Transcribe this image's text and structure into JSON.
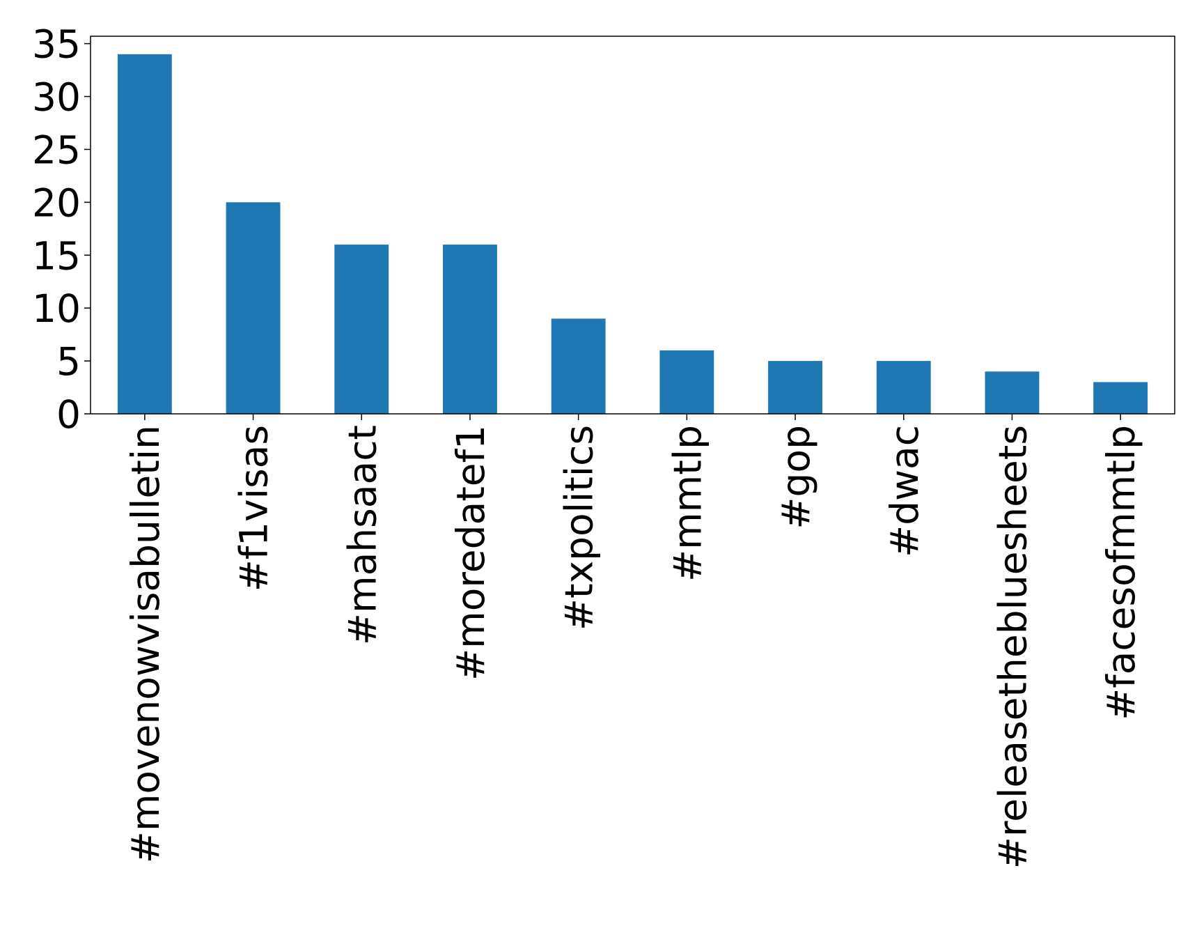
{
  "chart_data": {
    "type": "bar",
    "categories": [
      "#movenowvisabulletin",
      "#f1visas",
      "#mahsaact",
      "#moredatef1",
      "#txpolitics",
      "#mmtlp",
      "#gop",
      "#dwac",
      "#releasethebluesheets",
      "#facesofmmtlp"
    ],
    "values": [
      34,
      20,
      16,
      16,
      9,
      6,
      5,
      5,
      4,
      3
    ],
    "color": "#1f77b4",
    "ylim": [
      0,
      35.7
    ],
    "yticks": [
      0,
      5,
      10,
      15,
      20,
      25,
      30,
      35
    ],
    "grid": false
  }
}
